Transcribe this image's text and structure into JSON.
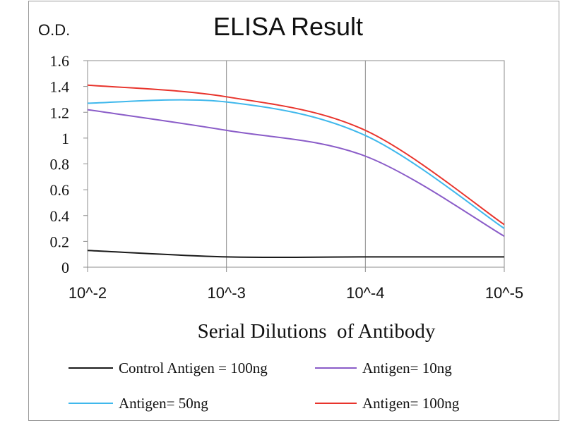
{
  "chart_data": {
    "type": "line",
    "title": "ELISA Result",
    "ylabel": "O.D.",
    "xlabel": "Serial Dilutions  of Antibody",
    "categories": [
      "10^-2",
      "10^-3",
      "10^-4",
      "10^-5"
    ],
    "ylim": [
      0,
      1.6
    ],
    "yticks": [
      "0",
      "0.2",
      "0.4",
      "0.6",
      "0.8",
      "1",
      "1.2",
      "1.4",
      "1.6"
    ],
    "grid": "vertical",
    "legend_position": "bottom",
    "series": [
      {
        "name": "Control Antigen = 100ng",
        "color": "#1a1a1a",
        "values": [
          0.13,
          0.08,
          0.08,
          0.08
        ]
      },
      {
        "name": "Antigen= 10ng",
        "color": "#8a5cc8",
        "values": [
          1.22,
          1.06,
          0.86,
          0.24
        ]
      },
      {
        "name": "Antigen= 50ng",
        "color": "#3fb8ec",
        "values": [
          1.27,
          1.28,
          1.02,
          0.3
        ]
      },
      {
        "name": "Antigen= 100ng",
        "color": "#e8342c",
        "values": [
          1.41,
          1.32,
          1.06,
          0.33
        ]
      }
    ]
  }
}
